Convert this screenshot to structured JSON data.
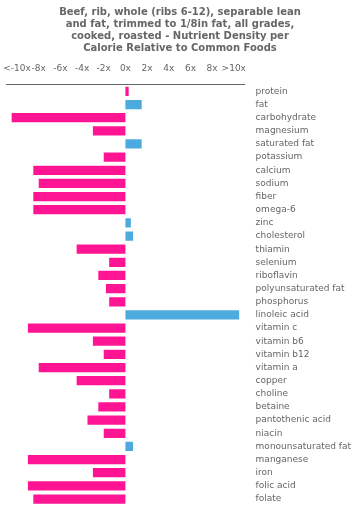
{
  "chart_data": {
    "type": "bar",
    "orientation": "horizontal",
    "title": "Beef, rib, whole (ribs 6-12), separable lean\nand fat, trimmed to 1/8in fat, all grades,\ncooked, roasted - Nutrient Density per\nCalorie Relative to Common Foods",
    "categories": [
      "protein",
      "fat",
      "carbohydrate",
      "magnesium",
      "saturated fat",
      "potassium",
      "calcium",
      "sodium",
      "fiber",
      "omega-6",
      "zinc",
      "cholesterol",
      "thiamin",
      "selenium",
      "riboflavin",
      "polyunsaturated fat",
      "phosphorus",
      "linoleic acid",
      "vitamin c",
      "vitamin b6",
      "vitamin b12",
      "vitamin a",
      "copper",
      "choline",
      "betaine",
      "pantothenic acid",
      "niacin",
      "monounsaturated fat",
      "manganese",
      "iron",
      "folic acid",
      "folate"
    ],
    "values": [
      0.3,
      1.5,
      -10.5,
      -3.0,
      1.5,
      -2.0,
      -8.5,
      -8.0,
      -8.5,
      -8.5,
      0.5,
      0.7,
      -4.5,
      -1.5,
      -2.5,
      -1.8,
      -1.5,
      10.5,
      -9.0,
      -3.0,
      -2.0,
      -8.0,
      -4.5,
      -1.5,
      -2.5,
      -3.5,
      -2.0,
      0.7,
      -9.0,
      -3.0,
      -9.0,
      -8.5
    ],
    "colors": [
      "#FF1493",
      "#4DAADF",
      "#FF1493",
      "#FF1493",
      "#4DAADF",
      "#FF1493",
      "#FF1493",
      "#FF1493",
      "#FF1493",
      "#FF1493",
      "#4DAADF",
      "#4DAADF",
      "#FF1493",
      "#FF1493",
      "#FF1493",
      "#FF1493",
      "#FF1493",
      "#4DAADF",
      "#FF1493",
      "#FF1493",
      "#FF1493",
      "#FF1493",
      "#FF1493",
      "#FF1493",
      "#FF1493",
      "#FF1493",
      "#FF1493",
      "#4DAADF",
      "#FF1493",
      "#FF1493",
      "#FF1493",
      "#FF1493"
    ],
    "xlim": [
      -11,
      11
    ],
    "xticks": [
      {
        "value": -10,
        "label": "<-10x"
      },
      {
        "value": -8,
        "label": "-8x"
      },
      {
        "value": -6,
        "label": "-6x"
      },
      {
        "value": -4,
        "label": "-4x"
      },
      {
        "value": -2,
        "label": "-2x"
      },
      {
        "value": 0,
        "label": "0x"
      },
      {
        "value": 2,
        "label": "2x"
      },
      {
        "value": 4,
        "label": "4x"
      },
      {
        "value": 6,
        "label": "6x"
      },
      {
        "value": 8,
        "label": "8x"
      },
      {
        "value": 10,
        "label": ">10x"
      }
    ],
    "grid": false
  }
}
